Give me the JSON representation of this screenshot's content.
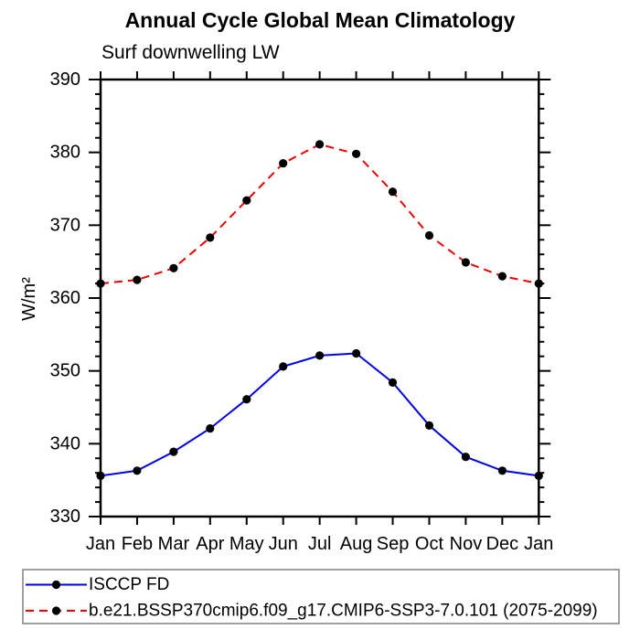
{
  "figure": {
    "title": "Annual Cycle Global Mean Climatology",
    "subtitle": "Surf downwelling LW",
    "background_color": "#ffffff",
    "axis_color": "#000000",
    "legend_border_color": "#808080"
  },
  "chart_data": {
    "type": "line",
    "title": "Annual Cycle Global Mean Climatology",
    "subtitle": "Surf downwelling LW",
    "xlabel": "",
    "ylabel": "W/m²",
    "categories": [
      "Jan",
      "Feb",
      "Mar",
      "Apr",
      "May",
      "Jun",
      "Jul",
      "Aug",
      "Sep",
      "Oct",
      "Nov",
      "Dec",
      "Jan"
    ],
    "ylim": [
      330,
      390
    ],
    "ytick_major_step": 10,
    "ytick_minor_step": 2,
    "ytick_labels": [
      "330",
      "340",
      "350",
      "360",
      "370",
      "380",
      "390"
    ],
    "grid": false,
    "frame": "box-with-outward-ticks",
    "legend_position": "bottom-left-box",
    "marker": "filled-circle",
    "marker_color": "#000000",
    "series": [
      {
        "name": "ISCCP FD",
        "color": "#0000ee",
        "line_style": "solid",
        "values": [
          335.6,
          336.3,
          338.9,
          342.1,
          346.1,
          350.6,
          352.1,
          352.4,
          348.4,
          342.5,
          338.2,
          336.3,
          335.6
        ]
      },
      {
        "name": "b.e21.BSSP370cmip6.f09_g17.CMIP6-SSP3-7.0.101 (2075-2099)",
        "color": "#ee0000",
        "line_style": "dashed",
        "values": [
          362.0,
          362.5,
          364.1,
          368.3,
          373.4,
          378.5,
          381.1,
          379.8,
          374.6,
          368.6,
          364.9,
          363.0,
          362.0
        ]
      }
    ]
  }
}
